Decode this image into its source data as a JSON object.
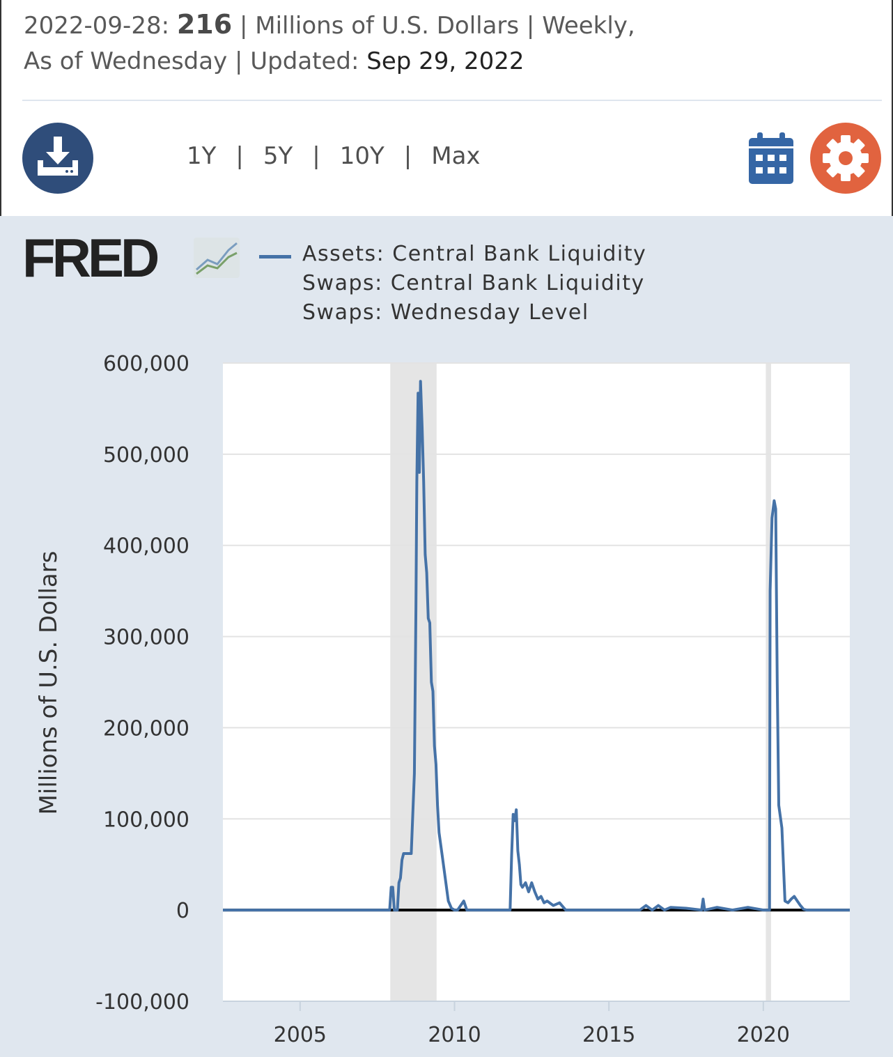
{
  "header": {
    "date": "2022-09-28:",
    "value": "216",
    "meta_units": "| Millions of U.S. Dollars | Weekly,",
    "meta_freq": "As of Wednesday | Updated:",
    "updated": "Sep 29, 2022"
  },
  "toolbar": {
    "download_icon": "download-icon",
    "ranges": [
      "1Y",
      "5Y",
      "10Y",
      "Max"
    ],
    "separator": "|",
    "calendar_icon": "calendar-icon",
    "settings_icon": "gear-icon"
  },
  "colors": {
    "series": "#4572a7",
    "recession": "#e5e5e5",
    "panel": "#e0e7ef",
    "download": "#2f4d7a",
    "settings": "#e1633f"
  },
  "logo": {
    "text": "FRED"
  },
  "chart_data": {
    "type": "line",
    "legend": [
      "Assets: Central Bank Liquidity",
      "Swaps: Central Bank Liquidity",
      "Swaps: Wednesday Level"
    ],
    "ylabel": "Millions of U.S. Dollars",
    "xlim": [
      2002.5,
      2022.8
    ],
    "ylim": [
      -100000,
      600000
    ],
    "yticks": [
      600000,
      500000,
      400000,
      300000,
      200000,
      100000,
      0,
      -100000
    ],
    "ytick_labels": [
      "600,000",
      "500,000",
      "400,000",
      "300,000",
      "200,000",
      "100,000",
      "0",
      "-100,000"
    ],
    "xticks": [
      2005,
      2010,
      2015,
      2020
    ],
    "xtick_labels": [
      "2005",
      "2010",
      "2015",
      "2020"
    ],
    "grid": true,
    "zero_line": true,
    "recessions": [
      [
        2007.92,
        2009.42
      ],
      [
        2020.08,
        2020.25
      ]
    ],
    "series": [
      {
        "x": [
          2002.5,
          2007.9,
          2007.95,
          2008.0,
          2008.05,
          2008.15,
          2008.2,
          2008.25,
          2008.3,
          2008.35,
          2008.4,
          2008.5,
          2008.6,
          2008.7,
          2008.75,
          2008.78,
          2008.82,
          2008.86,
          2008.9,
          2008.95,
          2009.0,
          2009.05,
          2009.1,
          2009.15,
          2009.2,
          2009.25,
          2009.3,
          2009.35,
          2009.4,
          2009.45,
          2009.5,
          2009.6,
          2009.7,
          2009.8,
          2009.9,
          2010.0,
          2010.1,
          2010.3,
          2010.4,
          2010.5,
          2011.8,
          2011.85,
          2011.9,
          2011.95,
          2012.0,
          2012.05,
          2012.1,
          2012.15,
          2012.2,
          2012.3,
          2012.4,
          2012.5,
          2012.6,
          2012.7,
          2012.8,
          2012.9,
          2013.0,
          2013.2,
          2013.4,
          2013.6,
          2013.8,
          2014.0,
          2016.0,
          2016.2,
          2016.4,
          2016.6,
          2016.8,
          2017.0,
          2017.5,
          2018.0,
          2018.05,
          2018.1,
          2018.5,
          2019.0,
          2019.5,
          2020.0,
          2020.2,
          2020.22,
          2020.28,
          2020.35,
          2020.4,
          2020.45,
          2020.5,
          2020.6,
          2020.7,
          2020.8,
          2020.9,
          2021.0,
          2021.1,
          2021.2,
          2021.3,
          2021.4,
          2021.6,
          2022.0,
          2022.8
        ],
        "values": [
          0,
          0,
          25000,
          25000,
          0,
          0,
          30000,
          35000,
          55000,
          62000,
          62000,
          62000,
          62000,
          150000,
          330000,
          470000,
          567000,
          480000,
          580000,
          530000,
          470000,
          390000,
          370000,
          320000,
          315000,
          250000,
          240000,
          180000,
          160000,
          115000,
          85000,
          60000,
          35000,
          10000,
          2000,
          0,
          0,
          10000,
          0,
          0,
          0,
          60000,
          105000,
          98000,
          110000,
          65000,
          50000,
          28000,
          25000,
          30000,
          20000,
          30000,
          20000,
          12000,
          15000,
          8000,
          10000,
          5000,
          8000,
          0,
          0,
          0,
          0,
          5000,
          0,
          5000,
          0,
          3000,
          2000,
          0,
          12000,
          0,
          3000,
          0,
          3000,
          0,
          0,
          350000,
          430000,
          449000,
          440000,
          250000,
          115000,
          90000,
          10000,
          8000,
          12000,
          15000,
          10000,
          5000,
          1000,
          0,
          0,
          0,
          0
        ]
      }
    ]
  }
}
